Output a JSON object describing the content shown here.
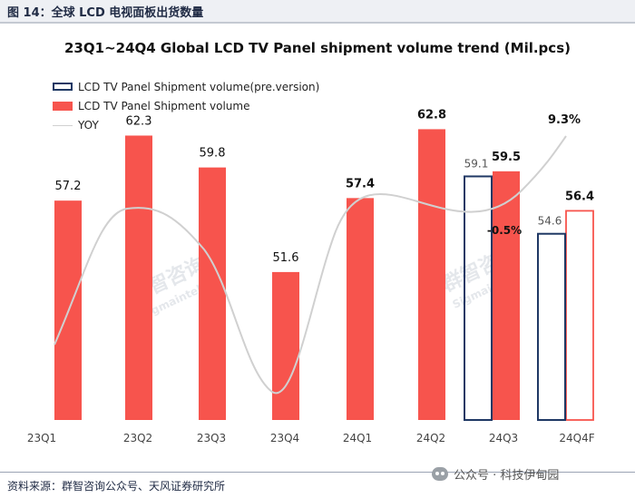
{
  "header": {
    "caption": "图 14：全球 LCD 电视面板出货数量"
  },
  "footer": {
    "source": "资料来源：群智咨询公众号、天风证券研究所",
    "wechat": "公众号 · 科技伊甸园"
  },
  "watermark": {
    "text": "群智咨询",
    "subtext": "Sigmaintell"
  },
  "chart_data": {
    "type": "bar",
    "title": "23Q1~24Q4 Global LCD TV Panel shipment volume trend (Mil.pcs)",
    "categories": [
      "23Q1",
      "23Q2",
      "23Q3",
      "23Q4",
      "24Q1",
      "24Q2",
      "24Q3",
      "24Q4F"
    ],
    "series": [
      {
        "name": "LCD TV Panel Shipment volume(pre.version)",
        "style": "outline",
        "color": "#1f3864",
        "values": [
          null,
          null,
          null,
          null,
          null,
          null,
          59.1,
          54.6
        ],
        "labels": [
          "",
          "",
          "",
          "",
          "",
          "",
          "59.1",
          "54.6"
        ]
      },
      {
        "name": "LCD TV Panel Shipment volume",
        "style": "fill",
        "color": "#f7544d",
        "values": [
          57.2,
          62.3,
          59.8,
          51.6,
          57.4,
          62.8,
          59.5,
          56.4
        ],
        "labels": [
          "57.2",
          "62.3",
          "59.8",
          "51.6",
          "57.4",
          "62.8",
          "59.5",
          "56.4"
        ],
        "outlined_last": true
      },
      {
        "name": "YOY",
        "style": "line",
        "color": "#d0d0d0",
        "annotations": [
          {
            "category": "24Q3",
            "label": "-0.5%"
          },
          {
            "category": "24Q4F",
            "label": "9.3%"
          }
        ]
      }
    ],
    "ylim": [
      40,
      67
    ],
    "grid": false
  }
}
